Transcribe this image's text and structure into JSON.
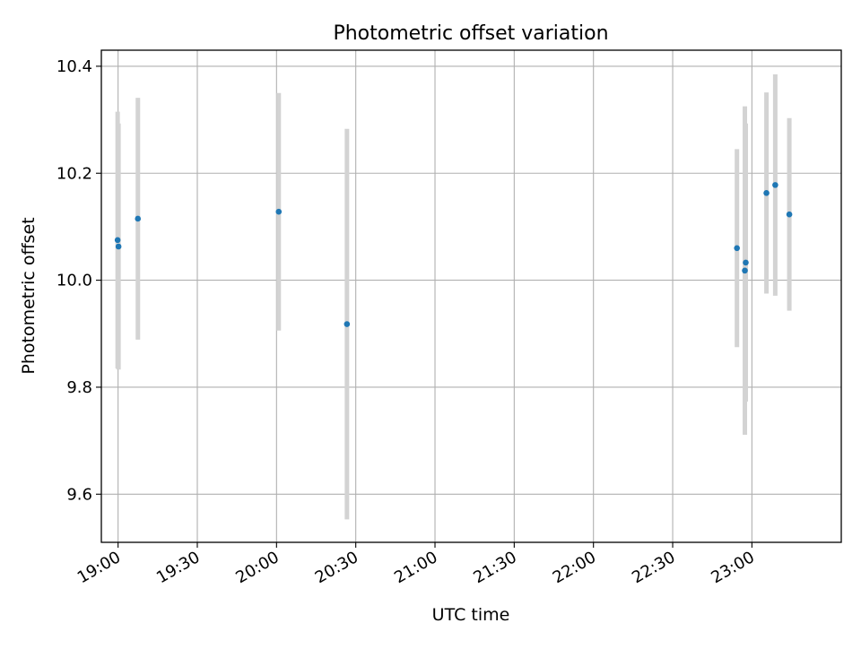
{
  "chart_data": {
    "type": "scatter",
    "title": "Photometric offset variation",
    "xlabel": "UTC time",
    "ylabel": "Photometric offset",
    "grid": true,
    "x_tick_labels": [
      "19:00",
      "19:30",
      "20:00",
      "20:30",
      "21:00",
      "21:30",
      "22:00",
      "22:30",
      "23:00"
    ],
    "x_tick_values": [
      "19:00",
      "19:30",
      "20:00",
      "20:30",
      "21:00",
      "21:30",
      "22:00",
      "22:30",
      "23:00"
    ],
    "xlim": [
      "18:53:40",
      "23:33:50"
    ],
    "y_tick_labels": [
      "9.6",
      "9.8",
      "10.0",
      "10.2",
      "10.4"
    ],
    "y_tick_values": [
      9.6,
      9.8,
      10.0,
      10.2,
      10.4
    ],
    "ylim": [
      9.51,
      10.43
    ],
    "marker_color": "#1f77b4",
    "errorbar_color": "#d3d3d3",
    "series": [
      {
        "points": [
          {
            "x": "18:59:50",
            "y": 10.075,
            "err": 0.24
          },
          {
            "x": "19:00:10",
            "y": 10.063,
            "err": 0.23
          },
          {
            "x": "19:07:30",
            "y": 10.115,
            "err": 0.226
          },
          {
            "x": "20:00:50",
            "y": 10.128,
            "err": 0.222
          },
          {
            "x": "20:26:40",
            "y": 9.918,
            "err": 0.365
          },
          {
            "x": "22:54:20",
            "y": 10.06,
            "err": 0.185
          },
          {
            "x": "22:57:20",
            "y": 10.018,
            "err": 0.307
          },
          {
            "x": "22:57:40",
            "y": 10.033,
            "err": 0.26
          },
          {
            "x": "23:05:30",
            "y": 10.163,
            "err": 0.188
          },
          {
            "x": "23:08:50",
            "y": 10.178,
            "err": 0.207
          },
          {
            "x": "23:14:10",
            "y": 10.123,
            "err": 0.18
          }
        ]
      }
    ]
  }
}
